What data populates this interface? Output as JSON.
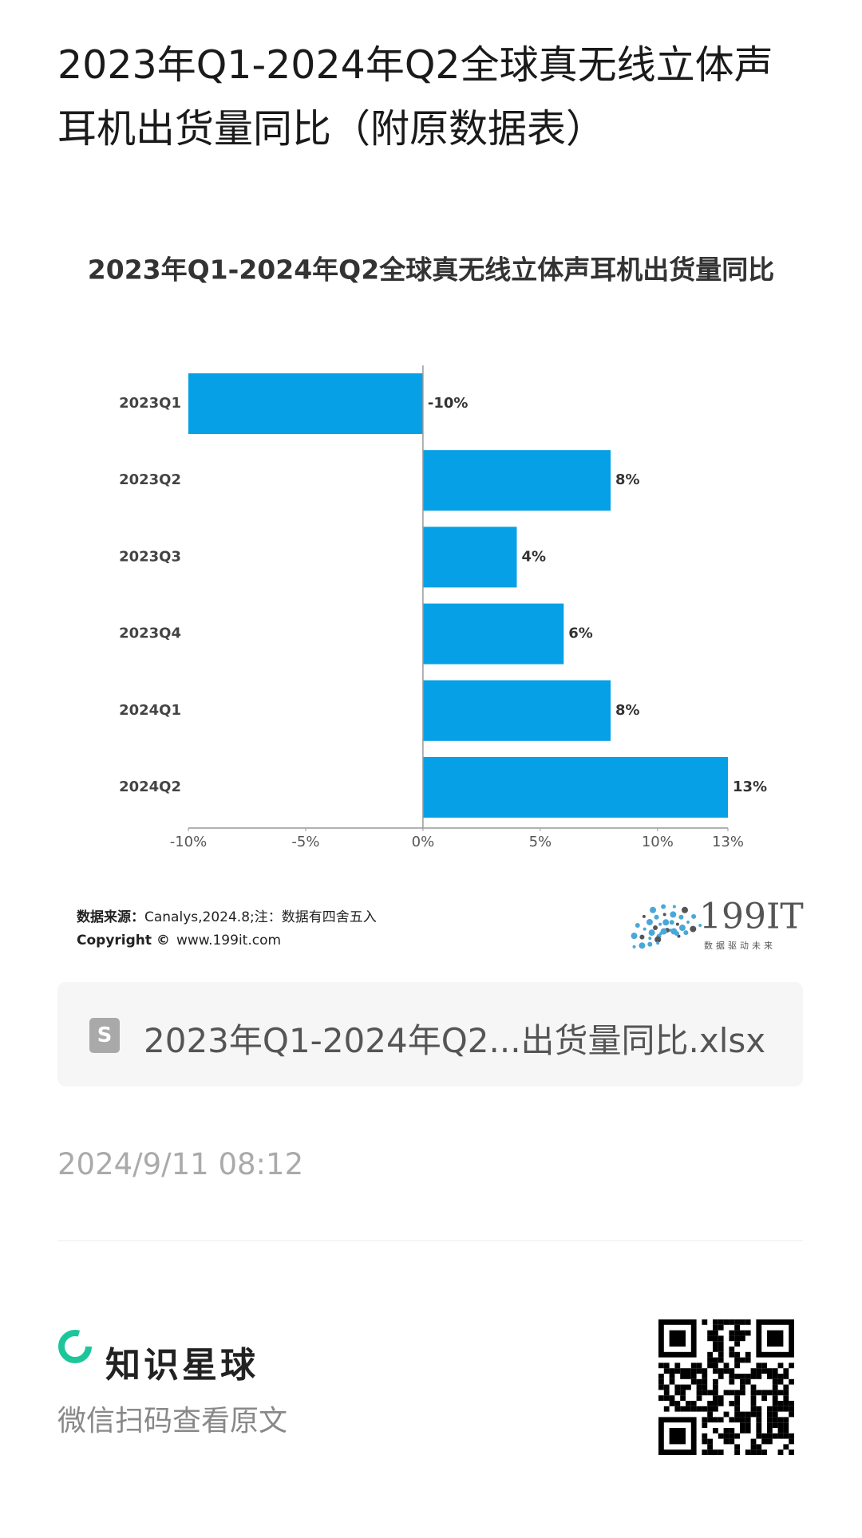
{
  "header": {
    "title": "2023年Q1-2024年Q2全球真无线立体声耳机出货量同比（附原数据表）"
  },
  "chart_data": {
    "type": "bar",
    "orientation": "horizontal",
    "title": "2023年Q1-2024年Q2全球真无线立体声耳机出货量同比",
    "categories": [
      "2023Q1",
      "2023Q2",
      "2023Q3",
      "2023Q4",
      "2024Q1",
      "2024Q2"
    ],
    "values": [
      -10,
      8,
      4,
      6,
      8,
      13
    ],
    "value_labels": [
      "-10%",
      "8%",
      "4%",
      "6%",
      "8%",
      "13%"
    ],
    "color": "#05a0e6",
    "xlim": [
      -10,
      13
    ],
    "xticks": [
      {
        "value": -10,
        "label": "-10%"
      },
      {
        "value": -5,
        "label": "-5%"
      },
      {
        "value": 0,
        "label": "0%"
      },
      {
        "value": 5,
        "label": "5%"
      },
      {
        "value": 10,
        "label": "10%"
      },
      {
        "value": 13,
        "label": "13%"
      }
    ]
  },
  "source": {
    "label": "数据来源：",
    "text": "Canalys,2024.8;注：数据有四舍五入",
    "copyright": "Copyright ©",
    "url": "www.199it.com"
  },
  "logo": {
    "name": "199IT",
    "slogan": "数据驱动未来"
  },
  "attachment": {
    "filename": "2023年Q1-2024年Q2...出货量同比.xlsx"
  },
  "date": "2024/9/11 08:12",
  "footer": {
    "brand": "知识星球",
    "hint": "微信扫码查看原文"
  }
}
